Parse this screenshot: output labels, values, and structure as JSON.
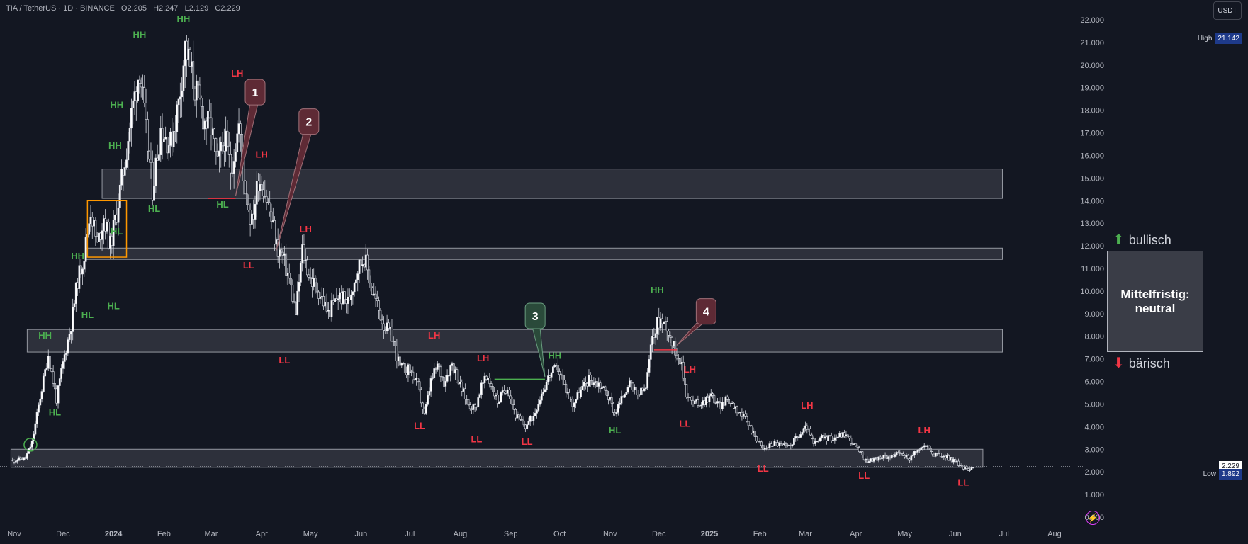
{
  "header": {
    "symbol": "TIA / TetherUS · 1D · BINANCE",
    "open": "O2.205",
    "high": "H2.247",
    "low": "L2.129",
    "close": "C2.229"
  },
  "unit_button": "USDT",
  "price_tags": {
    "high": {
      "name": "High",
      "value": "21.142"
    },
    "last": {
      "value": "2.229"
    },
    "low": {
      "name": "Low",
      "value": "1.892"
    }
  },
  "trend": {
    "bullish": "bullisch",
    "bearish": "bärisch",
    "status_line1": "Mittelfristig:",
    "status_line2": "neutral"
  },
  "colors": {
    "background": "#131722",
    "candle": "#ffffff",
    "bull_label": "#4caf50",
    "bear_label": "#f23645",
    "zone_fill": "#434651",
    "zone_border": "#9598a1",
    "highlight_box": "#ff9800",
    "callout_red": "#5e2a35",
    "callout_green": "#2a4a3a"
  },
  "chart_data": {
    "type": "candlestick",
    "title": "TIA / TetherUS · 1D · BINANCE",
    "ylim": [
      0,
      22
    ],
    "y_ticks": [
      "0.000",
      "1.000",
      "2.000",
      "3.000",
      "4.000",
      "5.000",
      "6.000",
      "7.000",
      "8.000",
      "9.000",
      "10.000",
      "11.000",
      "12.000",
      "13.000",
      "14.000",
      "15.000",
      "16.000",
      "17.000",
      "18.000",
      "19.000",
      "20.000",
      "21.000",
      "22.000"
    ],
    "x_ticks": [
      "Nov",
      "Dec",
      "2024",
      "Feb",
      "Mar",
      "Apr",
      "May",
      "Jun",
      "Jul",
      "Aug",
      "Sep",
      "Oct",
      "Nov",
      "Dec",
      "2025",
      "Feb",
      "Mar",
      "Apr",
      "May",
      "Jun",
      "Jul",
      "Aug"
    ],
    "x_tick_dates": [
      "2023-11-01",
      "2023-12-01",
      "2024-01-01",
      "2024-02-01",
      "2024-03-01",
      "2024-04-01",
      "2024-05-01",
      "2024-06-01",
      "2024-07-01",
      "2024-08-01",
      "2024-09-01",
      "2024-10-01",
      "2024-11-01",
      "2024-12-01",
      "2025-01-01",
      "2025-02-01",
      "2025-03-01",
      "2025-04-01",
      "2025-05-01",
      "2025-06-01",
      "2025-07-01",
      "2025-08-01"
    ],
    "price_path": [
      [
        "2023-10-31",
        2.5
      ],
      [
        "2023-11-08",
        2.6
      ],
      [
        "2023-11-12",
        3.3
      ],
      [
        "2023-11-17",
        5.3
      ],
      [
        "2023-11-22",
        7.2
      ],
      [
        "2023-11-27",
        5.2
      ],
      [
        "2023-12-01",
        6.8
      ],
      [
        "2023-12-06",
        8.5
      ],
      [
        "2023-12-10",
        10.5
      ],
      [
        "2023-12-14",
        11.6
      ],
      [
        "2023-12-18",
        13.6
      ],
      [
        "2023-12-22",
        12.0
      ],
      [
        "2023-12-26",
        13.3
      ],
      [
        "2023-12-30",
        12.0
      ],
      [
        "2024-01-03",
        13.5
      ],
      [
        "2024-01-08",
        15.8
      ],
      [
        "2024-01-12",
        17.8
      ],
      [
        "2024-01-17",
        19.9
      ],
      [
        "2024-01-21",
        17.0
      ],
      [
        "2024-01-25",
        14.5
      ],
      [
        "2024-01-30",
        17.2
      ],
      [
        "2024-02-05",
        16.5
      ],
      [
        "2024-02-10",
        18.3
      ],
      [
        "2024-02-14",
        20.8
      ],
      [
        "2024-02-20",
        19.0
      ],
      [
        "2024-02-26",
        17.5
      ],
      [
        "2024-03-01",
        17.2
      ],
      [
        "2024-03-05",
        15.5
      ],
      [
        "2024-03-09",
        16.8
      ],
      [
        "2024-03-13",
        15.4
      ],
      [
        "2024-03-18",
        17.3
      ],
      [
        "2024-03-22",
        14.5
      ],
      [
        "2024-03-26",
        13.0
      ],
      [
        "2024-03-30",
        15.0
      ],
      [
        "2024-04-02",
        14.7
      ],
      [
        "2024-04-06",
        13.5
      ],
      [
        "2024-04-10",
        12.0
      ],
      [
        "2024-04-14",
        11.5
      ],
      [
        "2024-04-18",
        10.5
      ],
      [
        "2024-04-22",
        9.0
      ],
      [
        "2024-04-26",
        11.8
      ],
      [
        "2024-05-01",
        10.5
      ],
      [
        "2024-05-06",
        10.0
      ],
      [
        "2024-05-12",
        9.0
      ],
      [
        "2024-05-18",
        9.8
      ],
      [
        "2024-05-24",
        9.5
      ],
      [
        "2024-05-30",
        11.0
      ],
      [
        "2024-06-03",
        11.5
      ],
      [
        "2024-06-08",
        10.0
      ],
      [
        "2024-06-15",
        8.5
      ],
      [
        "2024-06-20",
        8.0
      ],
      [
        "2024-06-25",
        6.6
      ],
      [
        "2024-07-01",
        6.5
      ],
      [
        "2024-07-06",
        5.8
      ],
      [
        "2024-07-10",
        4.5
      ],
      [
        "2024-07-14",
        6.0
      ],
      [
        "2024-07-18",
        6.7
      ],
      [
        "2024-07-22",
        6.0
      ],
      [
        "2024-07-27",
        6.8
      ],
      [
        "2024-08-01",
        5.8
      ],
      [
        "2024-08-06",
        5.0
      ],
      [
        "2024-08-10",
        4.8
      ],
      [
        "2024-08-14",
        5.8
      ],
      [
        "2024-08-18",
        6.2
      ],
      [
        "2024-08-24",
        5.1
      ],
      [
        "2024-08-30",
        5.8
      ],
      [
        "2024-09-04",
        4.5
      ],
      [
        "2024-09-10",
        4.0
      ],
      [
        "2024-09-15",
        4.5
      ],
      [
        "2024-09-20",
        5.5
      ],
      [
        "2024-09-25",
        6.3
      ],
      [
        "2024-09-30",
        6.6
      ],
      [
        "2024-10-04",
        5.8
      ],
      [
        "2024-10-09",
        5.0
      ],
      [
        "2024-10-14",
        5.6
      ],
      [
        "2024-10-19",
        6.1
      ],
      [
        "2024-10-25",
        5.9
      ],
      [
        "2024-10-30",
        5.5
      ],
      [
        "2024-11-04",
        4.6
      ],
      [
        "2024-11-08",
        5.2
      ],
      [
        "2024-11-12",
        5.9
      ],
      [
        "2024-11-18",
        5.4
      ],
      [
        "2024-11-23",
        5.7
      ],
      [
        "2024-11-27",
        8.0
      ],
      [
        "2024-12-01",
        8.7
      ],
      [
        "2024-12-06",
        8.5
      ],
      [
        "2024-12-10",
        7.5
      ],
      [
        "2024-12-14",
        7.0
      ],
      [
        "2024-12-18",
        5.5
      ],
      [
        "2024-12-22",
        5.0
      ],
      [
        "2024-12-28",
        5.1
      ],
      [
        "2025-01-02",
        5.4
      ],
      [
        "2025-01-07",
        4.9
      ],
      [
        "2025-01-12",
        5.2
      ],
      [
        "2025-01-17",
        4.9
      ],
      [
        "2025-01-24",
        4.2
      ],
      [
        "2025-01-30",
        3.5
      ],
      [
        "2025-02-03",
        3.0
      ],
      [
        "2025-02-10",
        3.3
      ],
      [
        "2025-02-18",
        3.1
      ],
      [
        "2025-02-25",
        3.6
      ],
      [
        "2025-03-02",
        4.0
      ],
      [
        "2025-03-06",
        3.2
      ],
      [
        "2025-03-11",
        3.5
      ],
      [
        "2025-03-18",
        3.5
      ],
      [
        "2025-03-25",
        3.7
      ],
      [
        "2025-04-01",
        3.1
      ],
      [
        "2025-04-07",
        2.5
      ],
      [
        "2025-04-15",
        2.6
      ],
      [
        "2025-04-22",
        2.7
      ],
      [
        "2025-04-28",
        2.8
      ],
      [
        "2025-05-04",
        2.6
      ],
      [
        "2025-05-10",
        3.0
      ],
      [
        "2025-05-14",
        3.2
      ],
      [
        "2025-05-18",
        2.8
      ],
      [
        "2025-05-25",
        2.7
      ],
      [
        "2025-05-31",
        2.5
      ],
      [
        "2025-06-04",
        2.3
      ],
      [
        "2025-06-08",
        2.1
      ],
      [
        "2025-06-12",
        2.25
      ]
    ],
    "zones": [
      {
        "from": "2023-12-25",
        "to": "2025-06-30",
        "y_low": 14.1,
        "y_high": 15.4
      },
      {
        "from": "2023-12-15",
        "to": "2025-06-30",
        "y_low": 11.4,
        "y_high": 11.9
      },
      {
        "from": "2023-11-09",
        "to": "2025-06-30",
        "y_low": 7.3,
        "y_high": 8.3
      },
      {
        "from": "2023-10-30",
        "to": "2025-06-18",
        "y_low": 2.2,
        "y_high": 3.0
      }
    ],
    "consolidation_box": {
      "from": "2023-12-16",
      "to": "2024-01-09",
      "y_low": 11.5,
      "y_high": 14.0
    },
    "breakout_circle": {
      "date": "2023-11-11",
      "value": 3.2
    },
    "structure_labels": [
      {
        "text": "HH",
        "type": "bull",
        "date": "2023-11-20",
        "value": 7.9
      },
      {
        "text": "HL",
        "type": "bull",
        "date": "2023-11-26",
        "value": 4.5
      },
      {
        "text": "HH",
        "type": "bull",
        "date": "2023-12-10",
        "value": 11.4
      },
      {
        "text": "HL",
        "type": "bull",
        "date": "2023-12-16",
        "value": 8.8
      },
      {
        "text": "HH",
        "type": "bull",
        "date": "2024-01-02",
        "value": 16.3
      },
      {
        "text": "HL",
        "type": "bull",
        "date": "2024-01-03",
        "value": 12.5
      },
      {
        "text": "HL",
        "type": "bull",
        "date": "2024-01-01",
        "value": 9.2
      },
      {
        "text": "HH",
        "type": "bull",
        "date": "2024-01-03",
        "value": 18.1
      },
      {
        "text": "HH",
        "type": "bull",
        "date": "2024-01-17",
        "value": 21.2
      },
      {
        "text": "HL",
        "type": "bull",
        "date": "2024-01-26",
        "value": 13.5
      },
      {
        "text": "HH",
        "type": "bull",
        "date": "2024-02-13",
        "value": 21.9
      },
      {
        "text": "HL",
        "type": "bull",
        "date": "2024-03-08",
        "value": 13.7
      },
      {
        "text": "LH",
        "type": "bear",
        "date": "2024-03-17",
        "value": 19.5
      },
      {
        "text": "LL",
        "type": "bear",
        "date": "2024-03-24",
        "value": 11.0
      },
      {
        "text": "LH",
        "type": "bear",
        "date": "2024-04-01",
        "value": 15.9
      },
      {
        "text": "LL",
        "type": "bear",
        "date": "2024-04-15",
        "value": 6.8
      },
      {
        "text": "LH",
        "type": "bear",
        "date": "2024-04-28",
        "value": 12.6
      },
      {
        "text": "LH",
        "type": "bear",
        "date": "2024-07-16",
        "value": 7.9
      },
      {
        "text": "LL",
        "type": "bear",
        "date": "2024-07-07",
        "value": 3.9
      },
      {
        "text": "LH",
        "type": "bear",
        "date": "2024-08-15",
        "value": 6.9
      },
      {
        "text": "LL",
        "type": "bear",
        "date": "2024-08-11",
        "value": 3.3
      },
      {
        "text": "LL",
        "type": "bear",
        "date": "2024-09-11",
        "value": 3.2
      },
      {
        "text": "HH",
        "type": "bull",
        "date": "2024-09-28",
        "value": 7.0
      },
      {
        "text": "HL",
        "type": "bull",
        "date": "2024-11-04",
        "value": 3.7
      },
      {
        "text": "HH",
        "type": "bull",
        "date": "2024-11-30",
        "value": 9.9
      },
      {
        "text": "LH",
        "type": "bear",
        "date": "2024-12-20",
        "value": 6.4
      },
      {
        "text": "LL",
        "type": "bear",
        "date": "2024-12-17",
        "value": 4.0
      },
      {
        "text": "LL",
        "type": "bear",
        "date": "2025-02-03",
        "value": 2.0
      },
      {
        "text": "LH",
        "type": "bear",
        "date": "2025-03-02",
        "value": 4.8
      },
      {
        "text": "LL",
        "type": "bear",
        "date": "2025-04-06",
        "value": 1.7
      },
      {
        "text": "LH",
        "type": "bear",
        "date": "2025-05-13",
        "value": 3.7
      },
      {
        "text": "LL",
        "type": "bear",
        "date": "2025-06-06",
        "value": 1.4
      }
    ],
    "level_lines": [
      {
        "from": "2024-02-28",
        "to": "2024-03-16",
        "value": 14.1,
        "color": "#f23645"
      },
      {
        "from": "2024-08-22",
        "to": "2024-09-22",
        "value": 6.1,
        "color": "#4caf50"
      },
      {
        "from": "2024-11-28",
        "to": "2024-12-12",
        "value": 7.4,
        "color": "#f23645"
      }
    ],
    "callouts": [
      {
        "label": "1",
        "date": "2024-03-28",
        "value": 18.8,
        "tip_date": "2024-03-16",
        "tip_value": 14.2,
        "style": "red"
      },
      {
        "label": "2",
        "date": "2024-04-30",
        "value": 17.5,
        "tip_date": "2024-04-10",
        "tip_value": 11.8,
        "style": "red"
      },
      {
        "label": "3",
        "date": "2024-09-16",
        "value": 8.9,
        "tip_date": "2024-09-22",
        "tip_value": 6.2,
        "style": "green"
      },
      {
        "label": "4",
        "date": "2024-12-30",
        "value": 9.1,
        "tip_date": "2024-12-12",
        "tip_value": 7.6,
        "style": "red"
      }
    ]
  }
}
